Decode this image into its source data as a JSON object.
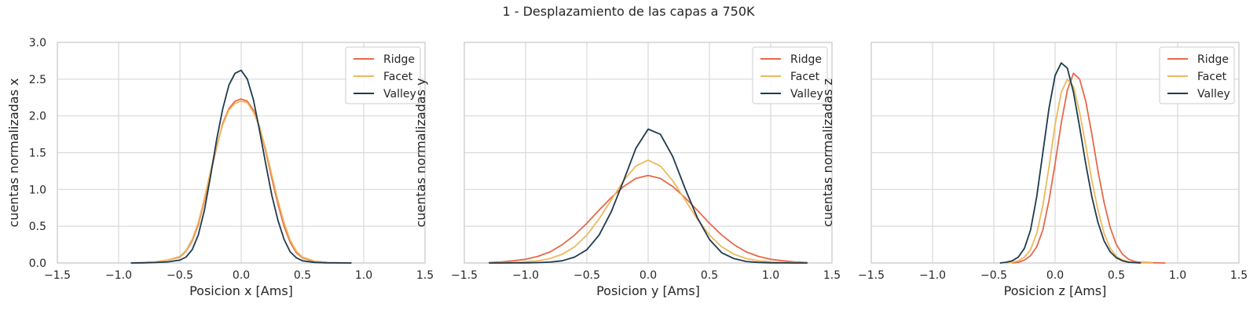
{
  "figure_title": "1 - Desplazamiento de las capas a 750K",
  "colors": {
    "Ridge": "#e8684a",
    "Facet": "#edb85c",
    "Valley": "#1e3b4d",
    "grid": "#d9d9d9",
    "frame": "#cccccc",
    "text": "#262626"
  },
  "chart_data": [
    {
      "type": "line",
      "xlabel": "Posicion x [Ams]",
      "ylabel": "cuentas normalizadas x",
      "xlim": [
        -1.5,
        1.5
      ],
      "ylim": [
        0,
        3.0
      ],
      "xticks": [
        "−1.5",
        "−1.0",
        "−0.5",
        "0.0",
        "0.5",
        "1.0",
        "1.5"
      ],
      "yticks": [
        "0.0",
        "0.5",
        "1.0",
        "1.5",
        "2.0",
        "2.5",
        "3.0"
      ],
      "grid": true,
      "legend_position": "top-right",
      "series": [
        {
          "name": "Ridge",
          "x": [
            -0.9,
            -0.8,
            -0.7,
            -0.6,
            -0.5,
            -0.45,
            -0.4,
            -0.35,
            -0.3,
            -0.25,
            -0.2,
            -0.15,
            -0.1,
            -0.05,
            0,
            0.05,
            0.1,
            0.15,
            0.2,
            0.25,
            0.3,
            0.35,
            0.4,
            0.45,
            0.5,
            0.6,
            0.7,
            0.8,
            0.9
          ],
          "y": [
            0,
            0.005,
            0.015,
            0.04,
            0.08,
            0.16,
            0.3,
            0.52,
            0.85,
            1.22,
            1.58,
            1.9,
            2.1,
            2.2,
            2.23,
            2.2,
            2.08,
            1.85,
            1.52,
            1.15,
            0.8,
            0.5,
            0.28,
            0.14,
            0.07,
            0.02,
            0.006,
            0.002,
            0
          ]
        },
        {
          "name": "Facet",
          "x": [
            -0.9,
            -0.8,
            -0.7,
            -0.6,
            -0.5,
            -0.45,
            -0.4,
            -0.35,
            -0.3,
            -0.25,
            -0.2,
            -0.15,
            -0.1,
            -0.05,
            0,
            0.05,
            0.1,
            0.15,
            0.2,
            0.25,
            0.3,
            0.35,
            0.4,
            0.45,
            0.5,
            0.6,
            0.7,
            0.8,
            0.9
          ],
          "y": [
            0,
            0.005,
            0.015,
            0.04,
            0.09,
            0.17,
            0.32,
            0.55,
            0.88,
            1.25,
            1.6,
            1.88,
            2.08,
            2.17,
            2.2,
            2.18,
            2.05,
            1.85,
            1.55,
            1.2,
            0.85,
            0.55,
            0.31,
            0.16,
            0.08,
            0.025,
            0.008,
            0.002,
            0
          ]
        },
        {
          "name": "Valley",
          "x": [
            -0.9,
            -0.8,
            -0.7,
            -0.6,
            -0.5,
            -0.45,
            -0.4,
            -0.35,
            -0.3,
            -0.25,
            -0.2,
            -0.15,
            -0.1,
            -0.05,
            0,
            0.05,
            0.1,
            0.15,
            0.2,
            0.25,
            0.3,
            0.35,
            0.4,
            0.45,
            0.5,
            0.6,
            0.7,
            0.8,
            0.9
          ],
          "y": [
            0,
            0.002,
            0.006,
            0.015,
            0.04,
            0.08,
            0.18,
            0.38,
            0.72,
            1.18,
            1.68,
            2.1,
            2.42,
            2.58,
            2.62,
            2.5,
            2.22,
            1.8,
            1.35,
            0.92,
            0.58,
            0.32,
            0.15,
            0.07,
            0.03,
            0.008,
            0.002,
            0.001,
            0
          ]
        }
      ]
    },
    {
      "type": "line",
      "xlabel": "Posicion y [Ams]",
      "ylabel": "cuentas normalizadas y",
      "xlim": [
        -1.5,
        1.5
      ],
      "ylim": [
        0,
        3.0
      ],
      "xticks": [
        "−1.5",
        "−1.0",
        "−0.5",
        "0.0",
        "0.5",
        "1.0",
        "1.5"
      ],
      "yticks": [],
      "grid": true,
      "legend_position": "top-right",
      "series": [
        {
          "name": "Ridge",
          "x": [
            -1.3,
            -1.2,
            -1.1,
            -1.0,
            -0.9,
            -0.8,
            -0.7,
            -0.6,
            -0.5,
            -0.4,
            -0.3,
            -0.2,
            -0.1,
            0,
            0.1,
            0.2,
            0.3,
            0.4,
            0.5,
            0.6,
            0.7,
            0.8,
            0.9,
            1.0,
            1.1,
            1.2,
            1.3
          ],
          "y": [
            0.005,
            0.015,
            0.03,
            0.05,
            0.09,
            0.15,
            0.25,
            0.38,
            0.54,
            0.72,
            0.89,
            1.04,
            1.15,
            1.19,
            1.15,
            1.04,
            0.89,
            0.72,
            0.54,
            0.38,
            0.25,
            0.15,
            0.09,
            0.05,
            0.03,
            0.015,
            0.005
          ]
        },
        {
          "name": "Facet",
          "x": [
            -1.3,
            -1.2,
            -1.1,
            -1.0,
            -0.9,
            -0.8,
            -0.7,
            -0.6,
            -0.5,
            -0.4,
            -0.3,
            -0.2,
            -0.1,
            0,
            0.1,
            0.2,
            0.3,
            0.4,
            0.5,
            0.6,
            0.7,
            0.8,
            0.9,
            1.0,
            1.1,
            1.2,
            1.3
          ],
          "y": [
            0.001,
            0.003,
            0.008,
            0.016,
            0.03,
            0.06,
            0.12,
            0.22,
            0.38,
            0.6,
            0.86,
            1.12,
            1.32,
            1.4,
            1.32,
            1.12,
            0.86,
            0.6,
            0.38,
            0.22,
            0.12,
            0.06,
            0.03,
            0.016,
            0.008,
            0.003,
            0.001
          ]
        },
        {
          "name": "Valley",
          "x": [
            -1.3,
            -1.2,
            -1.1,
            -1.0,
            -0.9,
            -0.8,
            -0.7,
            -0.6,
            -0.5,
            -0.4,
            -0.3,
            -0.2,
            -0.1,
            0,
            0.1,
            0.2,
            0.3,
            0.4,
            0.5,
            0.6,
            0.7,
            0.8,
            0.9,
            1.0,
            1.1,
            1.2,
            1.3
          ],
          "y": [
            0,
            0,
            0.001,
            0.002,
            0.005,
            0.012,
            0.03,
            0.08,
            0.18,
            0.38,
            0.7,
            1.12,
            1.56,
            1.82,
            1.75,
            1.45,
            1.02,
            0.62,
            0.32,
            0.14,
            0.06,
            0.02,
            0.007,
            0.002,
            0.001,
            0,
            0
          ]
        }
      ]
    },
    {
      "type": "line",
      "xlabel": "Posicion z [Ams]",
      "ylabel": "cuentas normalizadas z",
      "xlim": [
        -1.5,
        1.5
      ],
      "ylim": [
        0,
        3.0
      ],
      "xticks": [
        "−1.5",
        "−1.0",
        "−0.5",
        "0.0",
        "0.5",
        "1.0",
        "1.5"
      ],
      "yticks": [],
      "grid": true,
      "legend_position": "top-right",
      "series": [
        {
          "name": "Ridge",
          "x": [
            -0.35,
            -0.3,
            -0.25,
            -0.2,
            -0.15,
            -0.1,
            -0.05,
            0,
            0.05,
            0.1,
            0.15,
            0.2,
            0.25,
            0.3,
            0.35,
            0.4,
            0.45,
            0.5,
            0.55,
            0.6,
            0.65,
            0.7,
            0.8,
            0.9
          ],
          "y": [
            0,
            0.01,
            0.04,
            0.1,
            0.22,
            0.45,
            0.85,
            1.35,
            1.9,
            2.35,
            2.58,
            2.5,
            2.2,
            1.75,
            1.25,
            0.82,
            0.48,
            0.25,
            0.12,
            0.05,
            0.02,
            0.01,
            0.003,
            0
          ]
        },
        {
          "name": "Facet",
          "x": [
            -0.4,
            -0.35,
            -0.3,
            -0.25,
            -0.2,
            -0.15,
            -0.1,
            -0.05,
            0,
            0.05,
            0.1,
            0.15,
            0.2,
            0.25,
            0.3,
            0.35,
            0.4,
            0.45,
            0.5,
            0.55,
            0.6,
            0.65,
            0.7,
            0.8
          ],
          "y": [
            0,
            0.01,
            0.03,
            0.08,
            0.18,
            0.4,
            0.78,
            1.3,
            1.88,
            2.32,
            2.5,
            2.4,
            2.05,
            1.6,
            1.12,
            0.72,
            0.4,
            0.2,
            0.09,
            0.04,
            0.015,
            0.006,
            0.002,
            0
          ]
        },
        {
          "name": "Valley",
          "x": [
            -0.45,
            -0.4,
            -0.35,
            -0.3,
            -0.25,
            -0.2,
            -0.15,
            -0.1,
            -0.05,
            0,
            0.05,
            0.1,
            0.15,
            0.2,
            0.25,
            0.3,
            0.35,
            0.4,
            0.45,
            0.5,
            0.55,
            0.6,
            0.7
          ],
          "y": [
            0,
            0.01,
            0.03,
            0.08,
            0.2,
            0.45,
            0.9,
            1.5,
            2.1,
            2.55,
            2.72,
            2.65,
            2.32,
            1.85,
            1.35,
            0.9,
            0.55,
            0.3,
            0.15,
            0.07,
            0.03,
            0.01,
            0
          ]
        }
      ]
    }
  ]
}
